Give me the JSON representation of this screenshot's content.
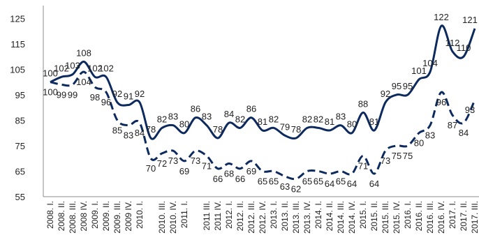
{
  "chart_data": {
    "type": "line",
    "title": "",
    "xlabel": "",
    "ylabel": "",
    "ylim": [
      55,
      130
    ],
    "yticks": [
      55,
      65,
      75,
      85,
      95,
      105,
      115,
      125
    ],
    "grid": false,
    "legend": "none",
    "categories": [
      "2008. I.",
      "2008. II.",
      "2008. III.",
      "2008. IV.",
      "2009. I.",
      "2009. II.",
      "2009. III.",
      "2009. IV.",
      "2010. I.",
      "2010. II.",
      "2010. III.",
      "2010. IV.",
      "2011. I.",
      "2011. II.",
      "2011. III.",
      "2011. IV.",
      "2012. I.",
      "2012. II.",
      "2012. III.",
      "2012. IV.",
      "2013. I.",
      "2013. II.",
      "2013. III.",
      "2013. IV.",
      "2014. I.",
      "2014. II.",
      "2014. III.",
      "2014. IV.",
      "2015. I.",
      "2015. II.",
      "2015. III.",
      "2015. IV.",
      "2016. I.",
      "2016. II.",
      "2016. III.",
      "2016. IV.",
      "2017. I.",
      "2017. II.",
      "2017. III."
    ],
    "xtick_labels": [
      "2008. I.",
      "2008. II.",
      "2008. III.",
      "2008 IV.",
      "2009. I.",
      "2009. II.",
      "2009. III.",
      "2009 IV.",
      "2010. I.",
      "",
      "2010. III.",
      "2010. IV.",
      "2011. I.",
      "",
      "2011 III.",
      "2011 IV.",
      "2012. I.",
      "2012. II.",
      "2012. III.",
      "2012. IV.",
      "2013. I.",
      "2013. II.",
      "2013. III.",
      "2013. IV.",
      "2014. I.",
      "2014. II.",
      "2014. III.",
      "2014. IV.",
      "2015. I.",
      "2015. II.",
      "2015. III.",
      "2015. IV.",
      "2016. I.",
      "2016. II.",
      "2016. III.",
      "2016. IV.",
      "2017. I.",
      "2017. II.",
      "2017. III."
    ],
    "series": [
      {
        "style": "solid",
        "color": "#0d2a5e",
        "values": [
          100,
          102,
          103,
          108,
          102,
          102,
          92,
          91,
          92,
          78,
          82,
          83,
          80,
          86,
          83,
          78,
          84,
          82,
          86,
          81,
          82,
          79,
          78,
          82,
          82,
          81,
          83,
          80,
          88,
          81,
          92,
          95,
          95,
          101,
          104,
          122,
          112,
          110,
          121
        ]
      },
      {
        "style": "dashed",
        "color": "#0d2a5e",
        "values": [
          100,
          99,
          99,
          104,
          98,
          96,
          85,
          83,
          84,
          70,
          72,
          73,
          69,
          73,
          71,
          66,
          68,
          66,
          69,
          65,
          65,
          63,
          62,
          65,
          65,
          64,
          65,
          64,
          71,
          64,
          73,
          75,
          75,
          80,
          83,
          96,
          87,
          84,
          93
        ]
      }
    ]
  }
}
